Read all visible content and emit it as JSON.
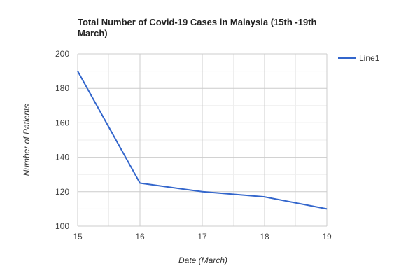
{
  "chart_data": {
    "type": "line",
    "title": "Total Number of Covid-19 Cases in Malaysia (15th -19th March)",
    "title_lines": [
      "Total Number of Covid-19 Cases in Malaysia (15th -19th",
      "March)"
    ],
    "xlabel": "Date (March)",
    "ylabel": "Number of Patients",
    "x": [
      15,
      16,
      17,
      18,
      19
    ],
    "x_tick_labels": [
      "15",
      "16",
      "17",
      "18",
      "19"
    ],
    "xlim": [
      15,
      19
    ],
    "ylim": [
      100,
      200
    ],
    "y_ticks": [
      100,
      120,
      140,
      160,
      180,
      200
    ],
    "series": [
      {
        "name": "Line1",
        "values": [
          190,
          125,
          120,
          117,
          110
        ],
        "color": "#3366cc"
      }
    ],
    "grid": true,
    "legend": "right"
  }
}
